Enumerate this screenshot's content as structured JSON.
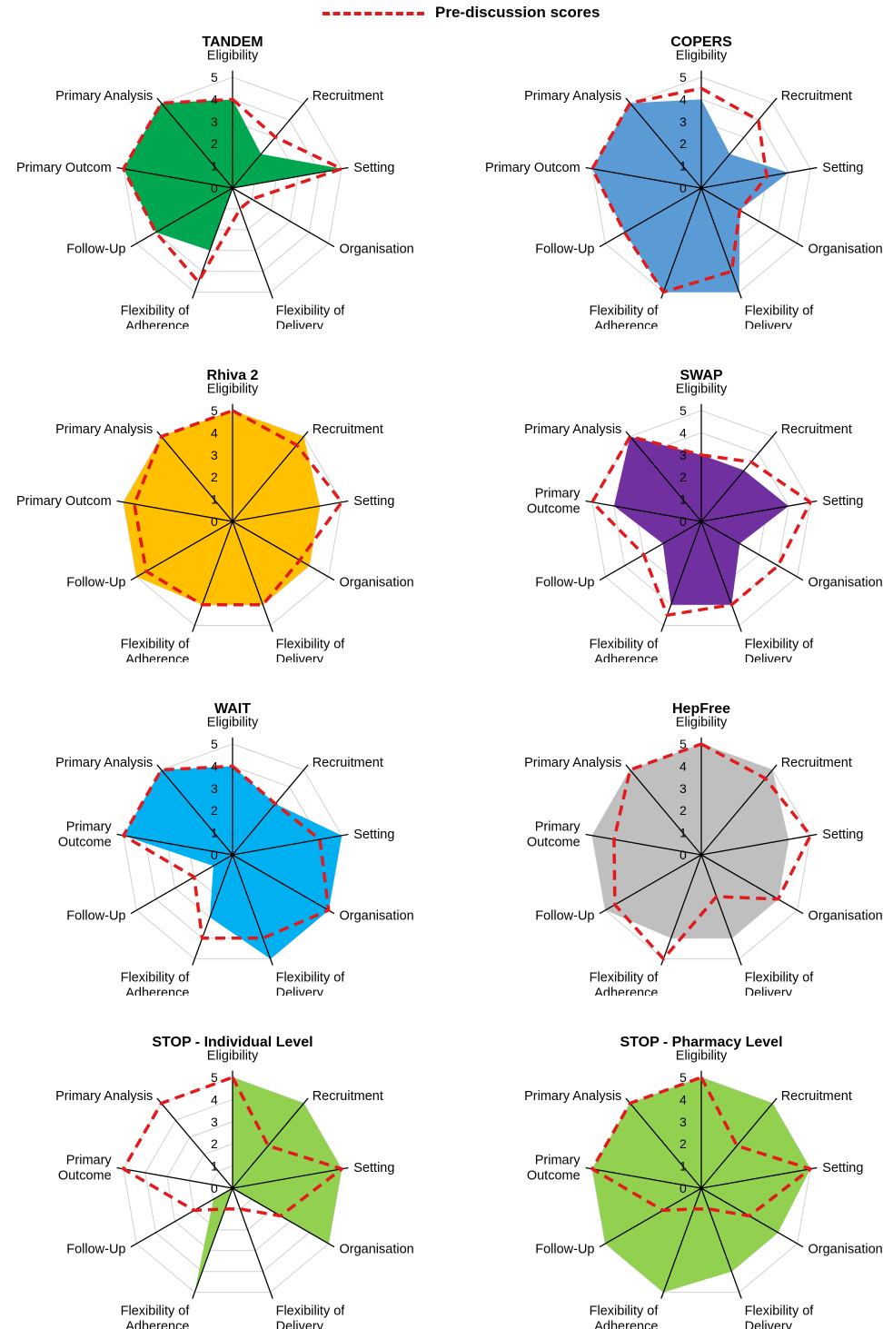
{
  "legend": {
    "label": "Pre-discussion scores",
    "color": "#e31a1c"
  },
  "chart_data": [
    {
      "type": "radar",
      "title": "TANDEM",
      "axes": [
        [
          "Eligibility"
        ],
        [
          "Recruitment"
        ],
        [
          "Setting"
        ],
        [
          "Organisation"
        ],
        [
          "Flexibility of",
          "Delivery"
        ],
        [
          "Flexibility of",
          "Adherence"
        ],
        [
          "Follow-Up"
        ],
        [
          "Primary Outcom"
        ],
        [
          "Primary Analysis"
        ]
      ],
      "ticks": [
        "0",
        "1",
        "2",
        "3",
        "4",
        "5"
      ],
      "rmax": 5,
      "fill_color": "#00a650",
      "series": [
        {
          "values": [
            4,
            2,
            5,
            0,
            0,
            3,
            4,
            5,
            5
          ]
        },
        {
          "values": [
            4,
            3,
            5,
            1,
            1,
            4.5,
            4,
            5,
            5
          ]
        }
      ]
    },
    {
      "type": "radar",
      "title": "COPERS",
      "axes": [
        [
          "Eligibility"
        ],
        [
          "Recruitment"
        ],
        [
          "Setting"
        ],
        [
          "Organisation"
        ],
        [
          "Flexibility of",
          "Delivery"
        ],
        [
          "Flexibility of",
          "Adherence"
        ],
        [
          "Follow-Up"
        ],
        [
          "Primary Outcom"
        ],
        [
          "Primary Analysis"
        ]
      ],
      "ticks": [
        "0",
        "1",
        "2",
        "3",
        "4",
        "5"
      ],
      "rmax": 5,
      "fill_color": "#5b9bd5",
      "series": [
        {
          "values": [
            4,
            2,
            4,
            2,
            5,
            5,
            4,
            5,
            5
          ]
        },
        {
          "values": [
            4.5,
            4,
            3,
            2,
            4,
            5,
            4,
            5,
            5
          ]
        }
      ]
    },
    {
      "type": "radar",
      "title": "Rhiva 2",
      "axes": [
        [
          "Eligibility"
        ],
        [
          "Recruitment"
        ],
        [
          "Setting"
        ],
        [
          "Organisation"
        ],
        [
          "Flexibility of",
          "Delivery"
        ],
        [
          "Flexibility of",
          "Adherence"
        ],
        [
          "Follow-Up"
        ],
        [
          "Primary Outcom"
        ],
        [
          "Primary Analysis"
        ]
      ],
      "ticks": [
        "0",
        "1",
        "2",
        "3",
        "4",
        "5"
      ],
      "rmax": 5,
      "fill_color": "#ffc000",
      "series": [
        {
          "values": [
            5,
            5,
            4,
            4,
            4,
            4,
            5,
            5,
            5
          ]
        },
        {
          "values": [
            5,
            4.5,
            5,
            3.5,
            4,
            4,
            4.5,
            4.5,
            5
          ]
        }
      ]
    },
    {
      "type": "radar",
      "title": "SWAP",
      "axes": [
        [
          "Eligibility"
        ],
        [
          "Recruitment"
        ],
        [
          "Setting"
        ],
        [
          "Organisation"
        ],
        [
          "Flexibility of",
          "Delivery"
        ],
        [
          "Flexibility of",
          "Adherence"
        ],
        [
          "Follow-Up"
        ],
        [
          "Primary",
          "Outcome"
        ],
        [
          "Primary Analysis"
        ]
      ],
      "ticks": [
        "0",
        "1",
        "2",
        "3",
        "4",
        "5"
      ],
      "rmax": 5,
      "fill_color": "#7030a0",
      "series": [
        {
          "values": [
            3,
            3,
            4,
            2,
            4,
            4,
            2,
            4,
            5
          ]
        },
        {
          "values": [
            3,
            3.5,
            5,
            4,
            4,
            4.5,
            3,
            5,
            5
          ]
        }
      ]
    },
    {
      "type": "radar",
      "title": "WAIT",
      "axes": [
        [
          "Eligibility"
        ],
        [
          "Recruitment"
        ],
        [
          "Setting"
        ],
        [
          "Organisation"
        ],
        [
          "Flexibility of",
          "Delivery"
        ],
        [
          "Flexibility of",
          "Adherence"
        ],
        [
          "Follow-Up"
        ],
        [
          "Primary",
          "Outcome"
        ],
        [
          "Primary Analysis"
        ]
      ],
      "ticks": [
        "0",
        "1",
        "2",
        "3",
        "4",
        "5"
      ],
      "rmax": 5,
      "fill_color": "#00b0f0",
      "series": [
        {
          "values": [
            4,
            3,
            5,
            5,
            5,
            3,
            1,
            5,
            5
          ]
        },
        {
          "values": [
            4,
            3,
            4,
            5,
            4,
            4,
            2,
            5,
            5
          ]
        }
      ]
    },
    {
      "type": "radar",
      "title": "HepFree",
      "axes": [
        [
          "Eligibility"
        ],
        [
          "Recruitment"
        ],
        [
          "Setting"
        ],
        [
          "Organisation"
        ],
        [
          "Flexibility of",
          "Delivery"
        ],
        [
          "Flexibility of",
          "Adherence"
        ],
        [
          "Follow-Up"
        ],
        [
          "Primary",
          "Outcome"
        ],
        [
          "Primary Analysis"
        ]
      ],
      "ticks": [
        "0",
        "1",
        "2",
        "3",
        "4",
        "5"
      ],
      "rmax": 5,
      "fill_color": "#bfbfbf",
      "series": [
        {
          "values": [
            5,
            5,
            4,
            4,
            4,
            4,
            5,
            5,
            5
          ]
        },
        {
          "values": [
            5,
            4.5,
            5,
            4,
            2,
            5,
            4.5,
            4,
            5
          ]
        }
      ]
    },
    {
      "type": "radar",
      "title": "STOP - Individual Level",
      "axes": [
        [
          "Eligibility"
        ],
        [
          "Recruitment"
        ],
        [
          "Setting"
        ],
        [
          "Organisation"
        ],
        [
          "Flexibility of",
          "Delivery"
        ],
        [
          "Flexibility of",
          "Adherence"
        ],
        [
          "Follow-Up"
        ],
        [
          "Primary",
          "Outcome"
        ],
        [
          "Primary Analysis"
        ]
      ],
      "ticks": [
        "0",
        "1",
        "2",
        "3",
        "4",
        "5"
      ],
      "rmax": 5,
      "fill_color": "#92d050",
      "series": [
        {
          "values": [
            5,
            5,
            5,
            5,
            0,
            5,
            1,
            0,
            0
          ]
        },
        {
          "values": [
            5,
            2.5,
            5,
            2.5,
            1,
            1,
            2,
            5,
            5
          ]
        }
      ]
    },
    {
      "type": "radar",
      "title": "STOP - Pharmacy Level",
      "axes": [
        [
          "Eligibility"
        ],
        [
          "Recruitment"
        ],
        [
          "Setting"
        ],
        [
          "Organisation"
        ],
        [
          "Flexibility of",
          "Delivery"
        ],
        [
          "Flexibility of",
          "Adherence"
        ],
        [
          "Follow-Up"
        ],
        [
          "Primary",
          "Outcome"
        ],
        [
          "Primary Analysis"
        ]
      ],
      "ticks": [
        "0",
        "1",
        "2",
        "3",
        "4",
        "5"
      ],
      "rmax": 5,
      "fill_color": "#92d050",
      "series": [
        {
          "values": [
            5,
            5,
            5,
            4,
            4,
            5,
            5,
            5,
            5
          ]
        },
        {
          "values": [
            5,
            2.5,
            5,
            2.5,
            1,
            1,
            2,
            5,
            5
          ]
        }
      ]
    }
  ]
}
